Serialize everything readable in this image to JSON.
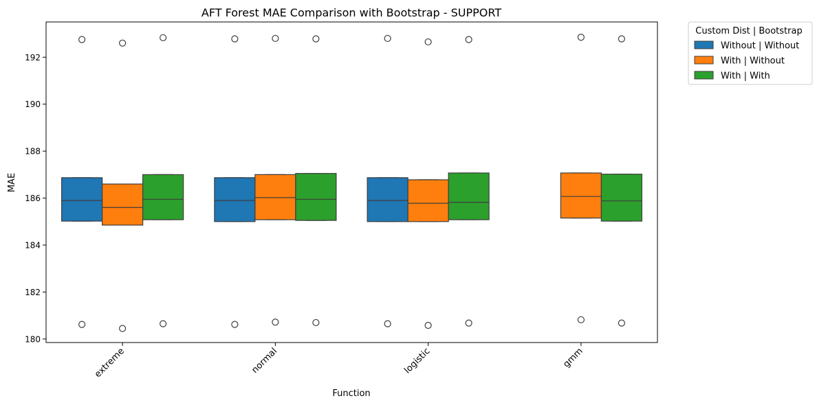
{
  "chart_data": {
    "type": "box",
    "title": "AFT Forest MAE Comparison with Bootstrap - SUPPORT",
    "xlabel": "Function",
    "ylabel": "MAE",
    "ylim": [
      179.85,
      193.5
    ],
    "yticks": [
      180,
      182,
      184,
      186,
      188,
      190,
      192
    ],
    "grid": false,
    "legend": {
      "title": "Custom Dist | Bootstrap",
      "placement": "outside-top-right"
    },
    "categories": [
      "extreme",
      "normal",
      "logistic",
      "gmm"
    ],
    "series": [
      {
        "name": "Without | Without",
        "color": "#1f77b4",
        "boxes": [
          {
            "category": "extreme",
            "q1": 185.02,
            "median": 185.9,
            "q3": 186.87,
            "whisker_low": 185.02,
            "whisker_high": 186.87,
            "outliers": [
              192.75,
              180.62
            ]
          },
          {
            "category": "normal",
            "q1": 185.0,
            "median": 185.9,
            "q3": 186.87,
            "whisker_low": 185.0,
            "whisker_high": 186.87,
            "outliers": [
              192.78,
              180.62
            ]
          },
          {
            "category": "logistic",
            "q1": 185.0,
            "median": 185.9,
            "q3": 186.87,
            "whisker_low": 185.0,
            "whisker_high": 186.87,
            "outliers": [
              192.8,
              180.65
            ]
          },
          null
        ]
      },
      {
        "name": "With | Without",
        "color": "#ff7f0e",
        "boxes": [
          {
            "category": "extreme",
            "q1": 184.85,
            "median": 185.6,
            "q3": 186.6,
            "whisker_low": 184.85,
            "whisker_high": 186.6,
            "outliers": [
              192.6,
              180.45
            ]
          },
          {
            "category": "normal",
            "q1": 185.08,
            "median": 186.02,
            "q3": 187.0,
            "whisker_low": 185.08,
            "whisker_high": 187.0,
            "outliers": [
              192.8,
              180.72
            ]
          },
          {
            "category": "logistic",
            "q1": 185.0,
            "median": 185.78,
            "q3": 186.78,
            "whisker_low": 185.0,
            "whisker_high": 186.78,
            "outliers": [
              192.65,
              180.58
            ]
          },
          {
            "category": "gmm",
            "q1": 185.15,
            "median": 186.07,
            "q3": 187.07,
            "whisker_low": 185.15,
            "whisker_high": 187.07,
            "outliers": [
              192.85,
              180.82
            ]
          }
        ]
      },
      {
        "name": "With | With",
        "color": "#2ca02c",
        "boxes": [
          {
            "category": "extreme",
            "q1": 185.08,
            "median": 185.95,
            "q3": 187.0,
            "whisker_low": 185.08,
            "whisker_high": 187.0,
            "outliers": [
              192.83,
              180.65
            ]
          },
          {
            "category": "normal",
            "q1": 185.05,
            "median": 185.95,
            "q3": 187.05,
            "whisker_low": 185.05,
            "whisker_high": 187.05,
            "outliers": [
              192.78,
              180.7
            ]
          },
          {
            "category": "logistic",
            "q1": 185.08,
            "median": 185.82,
            "q3": 187.07,
            "whisker_low": 185.08,
            "whisker_high": 187.07,
            "outliers": [
              192.75,
              180.68
            ]
          },
          {
            "category": "gmm",
            "q1": 185.02,
            "median": 185.88,
            "q3": 187.02,
            "whisker_low": 185.02,
            "whisker_high": 187.02,
            "outliers": [
              192.78,
              180.68
            ]
          }
        ]
      }
    ]
  }
}
